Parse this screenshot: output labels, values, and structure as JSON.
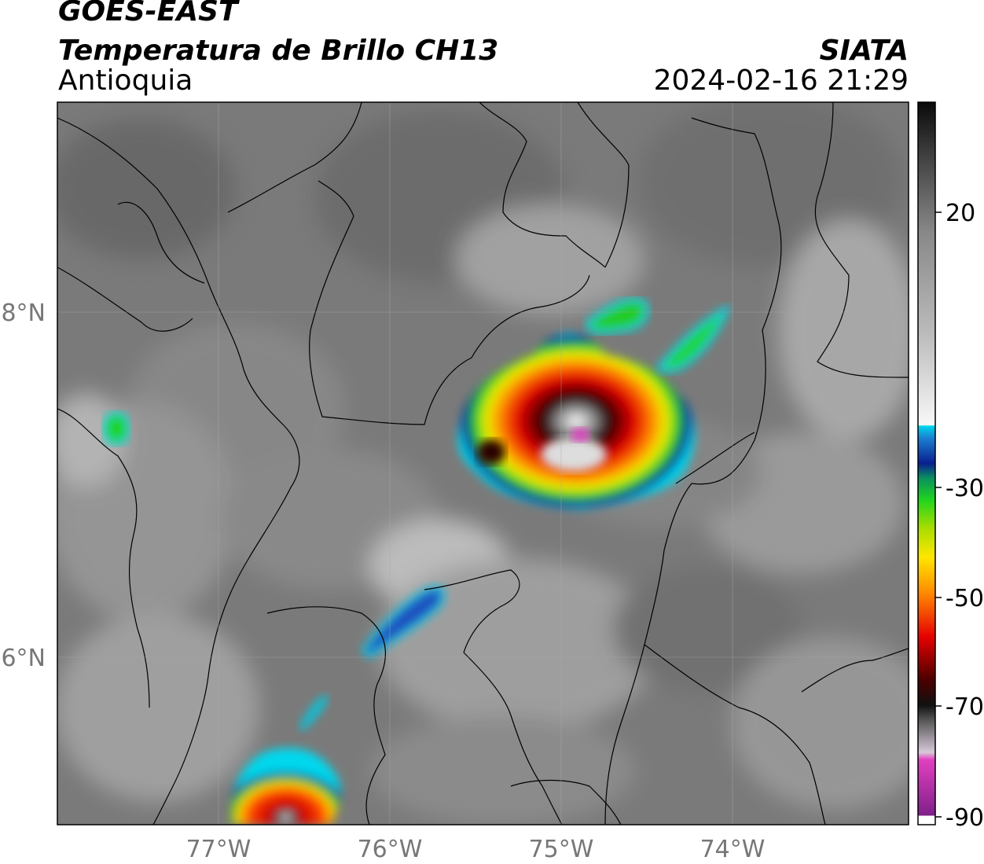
{
  "header": {
    "satellite": "GOES-EAST",
    "product": "Temperatura de Brillo CH13",
    "region": "Antioquia",
    "agency": "SIATA",
    "datetime": "2024-02-16 21:29"
  },
  "axes": {
    "lon_ticks": [
      "77°W",
      "76°W",
      "75°W",
      "74°W"
    ],
    "lat_ticks": [
      "8°N",
      "6°N"
    ]
  },
  "colorbar": {
    "tick_labels": [
      "20",
      "-30",
      "-50",
      "-70",
      "-90"
    ],
    "units": "",
    "colors": {
      "warm": "#1a1a1a",
      "clear": "#f2f2f2",
      "cyan": "#00d8ee",
      "blue": "#0a1f8f",
      "green": "#1ed41e",
      "yellow": "#ffe600",
      "red": "#e60000",
      "darkred": "#4a0000",
      "magenta": "#e040c0",
      "purple": "#80208a"
    }
  }
}
